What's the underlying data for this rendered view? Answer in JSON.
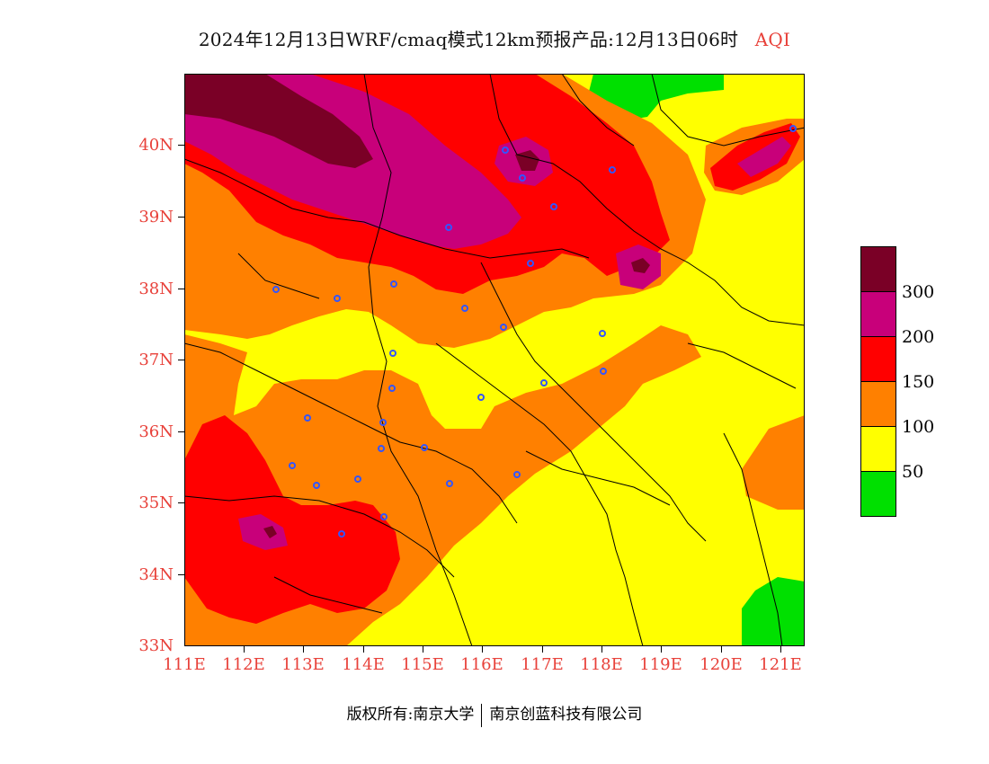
{
  "title": {
    "main": "2024年12月13日WRF/cmaq模式12km预报产品:12月13日06时",
    "variable": "AQI"
  },
  "axes": {
    "x_ticks": [
      "111E",
      "112E",
      "113E",
      "114E",
      "115E",
      "116E",
      "117E",
      "118E",
      "119E",
      "120E",
      "121E"
    ],
    "y_ticks": [
      "40N",
      "39N",
      "38N",
      "37N",
      "36N",
      "35N",
      "34N",
      "33N"
    ],
    "x_range": [
      111,
      121.4
    ],
    "y_range": [
      33,
      41
    ]
  },
  "legend": {
    "labels": [
      "300",
      "200",
      "150",
      "100",
      "50"
    ],
    "colors": [
      "#7a0026",
      "#c8007a",
      "#ff0000",
      "#ff8000",
      "#ffff00",
      "#00e000"
    ]
  },
  "colors": {
    "good": "#00e000",
    "moderate": "#ffff00",
    "sensitive": "#ff8000",
    "unhealthy": "#ff0000",
    "very_unhealthy": "#c8007a",
    "hazardous": "#7a0026",
    "station_marker": "#3355ff",
    "tick_label": "#e8413a"
  },
  "footer": {
    "copyright": "版权所有:南京大学",
    "company": "南京创蓝科技有限公司"
  }
}
